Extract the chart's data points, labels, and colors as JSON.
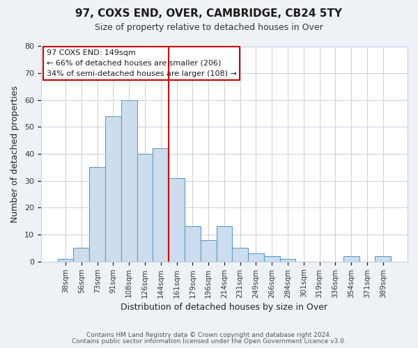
{
  "title": "97, COXS END, OVER, CAMBRIDGE, CB24 5TY",
  "subtitle": "Size of property relative to detached houses in Over",
  "xlabel": "Distribution of detached houses by size in Over",
  "ylabel": "Number of detached properties",
  "bar_labels": [
    "38sqm",
    "56sqm",
    "73sqm",
    "91sqm",
    "108sqm",
    "126sqm",
    "144sqm",
    "161sqm",
    "179sqm",
    "196sqm",
    "214sqm",
    "231sqm",
    "249sqm",
    "266sqm",
    "284sqm",
    "301sqm",
    "319sqm",
    "336sqm",
    "354sqm",
    "371sqm",
    "389sqm"
  ],
  "bar_values": [
    1,
    5,
    35,
    54,
    60,
    40,
    42,
    31,
    13,
    8,
    13,
    5,
    3,
    2,
    1,
    0,
    0,
    0,
    2,
    0,
    2
  ],
  "bar_color": "#ccdded",
  "bar_edge_color": "#5b9ec9",
  "vline_color": "#cc0000",
  "vline_index": 6.5,
  "ylim": [
    0,
    80
  ],
  "yticks": [
    0,
    10,
    20,
    30,
    40,
    50,
    60,
    70,
    80
  ],
  "annotation_title": "97 COXS END: 149sqm",
  "annotation_line1": "← 66% of detached houses are smaller (206)",
  "annotation_line2": "34% of semi-detached houses are larger (108) →",
  "footer1": "Contains HM Land Registry data © Crown copyright and database right 2024.",
  "footer2": "Contains public sector information licensed under the Open Government Licence v3.0.",
  "background_color": "#eef2f7",
  "plot_background": "#ffffff",
  "grid_color": "#c8d0da",
  "title_fontsize": 11,
  "subtitle_fontsize": 9,
  "xlabel_fontsize": 9,
  "ylabel_fontsize": 9,
  "tick_fontsize": 7.5,
  "annotation_fontsize": 8,
  "footer_fontsize": 6.5
}
